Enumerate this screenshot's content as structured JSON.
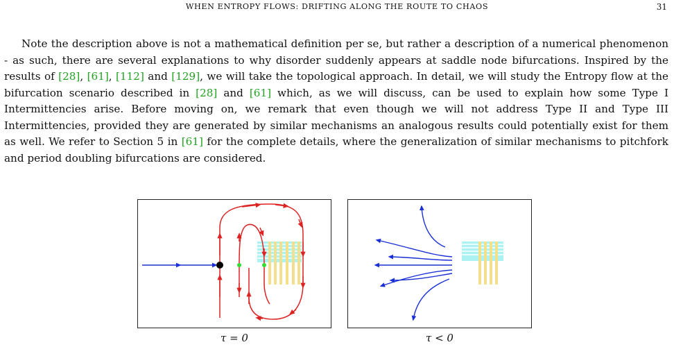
{
  "header": {
    "running_title": "WHEN ENTROPY FLOWS: DRIFTING ALONG THE ROUTE TO CHAOS",
    "page_number": "31"
  },
  "paragraph": [
    {
      "t": "Note the description above is not a mathematical definition per se, but rather a description of a numerical phenomenon - as such, there are several explanations to why disorder suddenly appears at saddle node bifurcations. Inspired by the results of "
    },
    {
      "t": "[28]",
      "cite": true
    },
    {
      "t": ", "
    },
    {
      "t": "[61]",
      "cite": true
    },
    {
      "t": ", "
    },
    {
      "t": "[112]",
      "cite": true
    },
    {
      "t": " and "
    },
    {
      "t": "[129]",
      "cite": true
    },
    {
      "t": ", we will take the topological approach. In detail, we will study the Entropy flow at the bifurcation scenario described in "
    },
    {
      "t": "[28]",
      "cite": true
    },
    {
      "t": " and "
    },
    {
      "t": "[61]",
      "cite": true
    },
    {
      "t": " which, as we will discuss, can be used to explain how some Type I Intermittencies arise. Before moving on, we remark that even though we will not address Type II and Type III Intermittencies, provided they are generated by similar mechanisms an analogous results could potentially exist for them as well. We refer to Section 5 in "
    },
    {
      "t": "[61]",
      "cite": true
    },
    {
      "t": " for the complete details, where the generalization of similar mechanisms to pitchfork and period doubling bifurcations are considered."
    }
  ],
  "figure": {
    "captions": [
      "τ = 0",
      "τ < 0"
    ],
    "colors": {
      "red_flow": "#dd2222",
      "blue_flow": "#1a2fd6",
      "stripe_cyan": "#9ff0f0",
      "stripe_yellow": "#f4e08a",
      "fixed_point": "#000000",
      "green_point": "#33dd33"
    }
  }
}
